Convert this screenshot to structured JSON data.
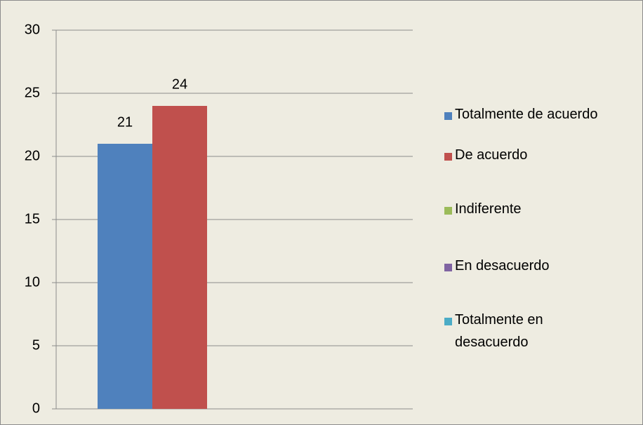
{
  "chart_data": {
    "type": "bar",
    "categories": [
      null
    ],
    "series": [
      {
        "name": "Totalmente de acuerdo",
        "color": "#4f81bd",
        "values": [
          21
        ]
      },
      {
        "name": "De acuerdo",
        "color": "#c0504d",
        "values": [
          24
        ]
      },
      {
        "name": "Indiferente",
        "color": "#9bbb59",
        "values": [
          null
        ]
      },
      {
        "name": "En desacuerdo",
        "color": "#8064a2",
        "values": [
          null
        ]
      },
      {
        "name": "Totalmente en desacuerdo",
        "color": "#4bacc6",
        "values": [
          null
        ]
      }
    ],
    "ylim": [
      0,
      30
    ],
    "yticks": [
      0,
      5,
      10,
      15,
      20,
      25,
      30
    ],
    "grid": true,
    "legend": "right"
  }
}
